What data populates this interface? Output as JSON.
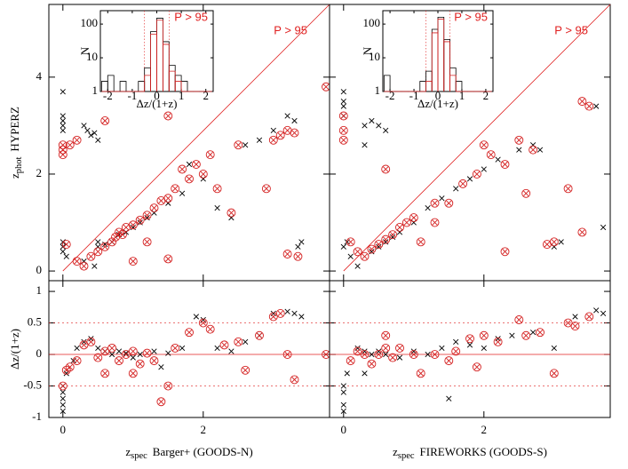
{
  "chart_data": [
    {
      "type": "scatter",
      "xlim": [
        -0.2,
        3.8
      ],
      "ylim": [
        -0.2,
        5.5
      ],
      "xticks": [
        0,
        2
      ],
      "yticks": [
        0,
        2,
        4
      ],
      "annotation": "P > 95",
      "ylabel": {
        "main": "z",
        "sub": "phot",
        "rest": "HYPERZ"
      },
      "series": [
        {
          "color": "#000000",
          "marker": "x",
          "x": [
            0,
            0,
            0,
            0,
            0,
            0,
            0,
            0,
            0.05,
            0.3,
            0.35,
            0.4,
            0.45,
            0.5,
            0.5,
            0.6,
            0.7,
            0.8,
            0.9,
            1.0,
            1.1,
            1.2,
            1.3,
            1.5,
            1.7,
            1.8,
            2.0,
            2.2,
            2.4,
            2.6,
            2.8,
            3.0,
            3.2,
            3.3,
            3.35,
            3.4,
            0.3,
            0.45,
            0.5
          ],
          "y": [
            3.7,
            3.2,
            3.1,
            3.0,
            2.9,
            0.6,
            0.5,
            0.4,
            0.3,
            3.0,
            2.9,
            2.8,
            2.85,
            2.7,
            0.6,
            0.55,
            0.6,
            0.75,
            0.8,
            0.9,
            1.0,
            1.1,
            1.2,
            1.4,
            1.6,
            2.2,
            1.9,
            1.3,
            1.1,
            2.6,
            2.7,
            2.9,
            3.2,
            3.1,
            0.5,
            0.6,
            0.2,
            0.1,
            0.5
          ]
        },
        {
          "color": "#d42020",
          "marker": "circle-x",
          "x": [
            0,
            0,
            0,
            0.1,
            0.2,
            0.05,
            0.2,
            0.3,
            0.4,
            0.5,
            0.6,
            0.7,
            0.75,
            0.8,
            0.85,
            0.9,
            1.0,
            1.1,
            1.2,
            1.3,
            1.4,
            1.0,
            1.2,
            1.5,
            1.6,
            1.7,
            1.8,
            1.9,
            2.0,
            2.1,
            2.2,
            2.4,
            2.5,
            2.9,
            3.0,
            3.1,
            3.2,
            3.3,
            3.35,
            3.2,
            1.5,
            1.5,
            0.6,
            3.75
          ],
          "y": [
            2.6,
            2.5,
            2.4,
            2.6,
            2.7,
            0.55,
            0.2,
            0.1,
            0.3,
            0.4,
            0.5,
            0.6,
            0.7,
            0.8,
            0.75,
            0.9,
            0.95,
            1.05,
            1.15,
            1.3,
            1.45,
            0.2,
            0.6,
            1.5,
            1.7,
            2.1,
            1.9,
            2.2,
            2.0,
            2.4,
            1.7,
            1.2,
            2.6,
            1.7,
            2.7,
            2.8,
            2.9,
            2.85,
            0.3,
            0.35,
            0.25,
            3.2,
            3.1,
            3.8
          ]
        }
      ]
    },
    {
      "type": "scatter",
      "xlim": [
        -0.2,
        3.8
      ],
      "ylim": [
        -1,
        1.17
      ],
      "xticks": [
        0,
        2
      ],
      "yticks": [
        -1,
        -0.5,
        0,
        0.5,
        1
      ],
      "ref_lines": [
        0
      ],
      "dashed_lines": [
        -0.5,
        0.5
      ],
      "ylabel": "Δz/(1+z)",
      "xlabel": {
        "main": "z",
        "sub": "spec",
        "rest": "Barger+ (GOODS-N)"
      },
      "series": [
        {
          "color": "#000000",
          "marker": "x",
          "x": [
            0,
            0,
            0,
            0,
            0,
            0.05,
            0.2,
            0.3,
            0.4,
            0.5,
            0.6,
            0.7,
            0.8,
            0.9,
            1.0,
            1.1,
            1.3,
            1.5,
            1.7,
            1.9,
            2.0,
            2.2,
            2.4,
            2.6,
            2.8,
            3.0,
            3.2,
            3.3,
            3.4,
            1.4,
            0.15
          ],
          "y": [
            -0.7,
            -0.8,
            -0.9,
            -0.6,
            -0.5,
            -0.3,
            0.1,
            0.2,
            0.25,
            0.1,
            0.05,
            0.0,
            0.05,
            0.02,
            -0.05,
            0.0,
            0.05,
            0.02,
            0.1,
            0.6,
            0.55,
            0.1,
            0.05,
            0.2,
            0.3,
            0.65,
            0.68,
            0.65,
            0.6,
            -0.2,
            -0.1
          ]
        },
        {
          "color": "#d42020",
          "marker": "circle-x",
          "x": [
            0,
            0.05,
            0.1,
            0.2,
            0.3,
            0.4,
            0.5,
            0.6,
            0.7,
            0.8,
            0.9,
            1.0,
            1.1,
            1.2,
            1.3,
            1.4,
            1.5,
            1.6,
            1.8,
            2.0,
            2.1,
            2.3,
            2.5,
            2.6,
            2.8,
            3.0,
            3.1,
            3.2,
            3.3,
            3.75,
            1.0,
            0.6
          ],
          "y": [
            -0.5,
            -0.25,
            -0.2,
            -0.1,
            0.15,
            0.2,
            -0.05,
            0.05,
            0.1,
            -0.1,
            0.0,
            0.05,
            -0.15,
            0.02,
            -0.1,
            -0.75,
            -0.5,
            0.1,
            0.35,
            0.5,
            0.4,
            0.15,
            0.2,
            -0.25,
            0.3,
            0.6,
            0.65,
            0.0,
            -0.4,
            0.0,
            -0.3,
            -0.3
          ]
        }
      ]
    },
    {
      "type": "scatter",
      "xlim": [
        -0.2,
        3.8
      ],
      "ylim": [
        -0.2,
        5.5
      ],
      "xticks": [
        0,
        2
      ],
      "yticks": [
        0,
        2,
        4
      ],
      "annotation": "P > 95",
      "series": [
        {
          "color": "#000000",
          "marker": "x",
          "x": [
            0,
            0,
            0,
            0,
            0.05,
            0,
            0.1,
            0.3,
            0.4,
            0.5,
            0.6,
            0.3,
            0.4,
            0.5,
            0.6,
            0.7,
            0.8,
            1.0,
            1.2,
            1.4,
            1.6,
            1.8,
            2.0,
            2.2,
            2.5,
            2.7,
            2.8,
            3.0,
            3.1,
            1.0,
            0.6,
            3.6,
            3.7,
            0.2
          ],
          "y": [
            3.7,
            3.5,
            3.2,
            3.4,
            0.6,
            0.5,
            0.3,
            3.0,
            3.1,
            3.0,
            2.9,
            2.6,
            0.4,
            0.5,
            0.6,
            0.7,
            0.8,
            1.0,
            1.3,
            1.5,
            1.7,
            1.9,
            2.1,
            2.3,
            2.5,
            2.6,
            2.5,
            0.5,
            0.6,
            4.0,
            3.9,
            3.4,
            0.9,
            0.1
          ]
        },
        {
          "color": "#d42020",
          "marker": "circle-x",
          "x": [
            0,
            0,
            0,
            0.1,
            0.2,
            0.3,
            0.4,
            0.5,
            0.6,
            0.7,
            0.8,
            0.9,
            1.0,
            1.1,
            1.3,
            1.5,
            1.7,
            1.9,
            2.0,
            2.1,
            2.3,
            2.5,
            2.6,
            2.7,
            2.9,
            3.0,
            3.2,
            3.4,
            3.5,
            2.3,
            1.3,
            0.6,
            3.4
          ],
          "y": [
            2.9,
            3.2,
            2.7,
            0.6,
            0.4,
            0.3,
            0.45,
            0.55,
            0.65,
            0.75,
            0.9,
            1.0,
            1.1,
            0.6,
            1.4,
            1.4,
            1.8,
            2.0,
            2.6,
            2.4,
            2.2,
            2.7,
            1.6,
            2.5,
            0.55,
            0.6,
            1.7,
            0.8,
            3.4,
            0.4,
            1.0,
            2.1,
            3.5
          ]
        }
      ]
    },
    {
      "type": "scatter",
      "xlim": [
        -0.2,
        3.8
      ],
      "ylim": [
        -1,
        1.17
      ],
      "xticks": [
        0,
        2
      ],
      "yticks": [
        -1,
        -0.5,
        0,
        0.5,
        1
      ],
      "ref_lines": [
        0
      ],
      "dashed_lines": [
        -0.5,
        0.5
      ],
      "xlabel": {
        "main": "z",
        "sub": "spec",
        "rest": "FIREWORKS (GOODS-S)"
      },
      "series": [
        {
          "color": "#000000",
          "marker": "x",
          "x": [
            0,
            0,
            0,
            0,
            0.05,
            0.2,
            0.3,
            0.4,
            0.5,
            0.6,
            0.8,
            1.0,
            1.2,
            1.4,
            1.6,
            1.8,
            2.0,
            2.2,
            2.4,
            2.7,
            3.0,
            3.3,
            3.6,
            1.5,
            0.3,
            3.7
          ],
          "y": [
            -0.6,
            -0.8,
            -0.9,
            -0.5,
            -0.3,
            0.1,
            0.05,
            0.0,
            0.05,
            0.0,
            -0.05,
            0.05,
            0.0,
            0.1,
            0.2,
            0.15,
            0.1,
            0.25,
            0.3,
            0.35,
            0.1,
            0.6,
            0.7,
            -0.7,
            -0.3,
            0.65
          ]
        },
        {
          "color": "#d42020",
          "marker": "circle-x",
          "x": [
            0.1,
            0.2,
            0.3,
            0.4,
            0.5,
            0.6,
            0.7,
            0.8,
            1.0,
            1.1,
            1.3,
            1.5,
            1.6,
            1.8,
            2.0,
            2.2,
            2.5,
            2.6,
            2.8,
            3.0,
            3.2,
            3.3,
            3.5,
            1.9,
            0.6
          ],
          "y": [
            -0.1,
            0.05,
            0.0,
            -0.15,
            0.0,
            0.1,
            -0.05,
            0.1,
            0.0,
            -0.3,
            0.0,
            -0.1,
            0.05,
            0.25,
            0.3,
            0.2,
            0.55,
            0.3,
            0.35,
            -0.3,
            0.5,
            0.45,
            0.6,
            -0.2,
            0.3
          ]
        }
      ]
    },
    {
      "type": "histogram",
      "log": true,
      "xlim": [
        -2.3,
        2.3
      ],
      "ylim": [
        1,
        250
      ],
      "xticks": [
        -2,
        -1,
        0,
        1,
        2
      ],
      "yticks": [
        1,
        10,
        100
      ],
      "annotation": "P > 95",
      "ylabel": "N",
      "xlabel": "Δz/(1+z)",
      "vlines": [
        -0.5,
        0.5
      ],
      "bins": [
        -2.25,
        -2,
        -1.75,
        -1.5,
        -1.25,
        -1,
        -0.75,
        -0.5,
        -0.25,
        0,
        0.25,
        0.5,
        0.75,
        1,
        1.25,
        1.5,
        1.75,
        2,
        2.25
      ],
      "series": [
        {
          "color": "#000000",
          "counts": [
            2,
            3,
            1,
            2,
            1,
            1,
            2,
            5,
            60,
            150,
            30,
            6,
            3,
            2,
            1,
            1,
            1,
            1
          ]
        },
        {
          "color": "#d42020",
          "counts": [
            1,
            1,
            1,
            1,
            1,
            1,
            1,
            3,
            50,
            130,
            25,
            4,
            2,
            1,
            1,
            1,
            1,
            1
          ]
        }
      ]
    },
    {
      "type": "histogram",
      "log": true,
      "xlim": [
        -2.3,
        2.3
      ],
      "ylim": [
        1,
        250
      ],
      "xticks": [
        -2,
        -1,
        0,
        1,
        2
      ],
      "yticks": [
        1,
        10,
        100
      ],
      "annotation": "P > 95",
      "ylabel": "N",
      "xlabel": "Δz/(1+z)",
      "vlines": [
        -0.5,
        0.5
      ],
      "bins": [
        -2.25,
        -2,
        -1.75,
        -1.5,
        -1.25,
        -1,
        -0.75,
        -0.5,
        -0.25,
        0,
        0.25,
        0.5,
        0.75,
        1,
        1.25,
        1.5,
        1.75,
        2,
        2.25
      ],
      "series": [
        {
          "color": "#000000",
          "counts": [
            3,
            1,
            1,
            1,
            1,
            1,
            2,
            4,
            70,
            160,
            35,
            5,
            2,
            1,
            1,
            1,
            1,
            1
          ]
        },
        {
          "color": "#d42020",
          "counts": [
            1,
            1,
            1,
            1,
            1,
            1,
            1,
            2,
            55,
            140,
            30,
            3,
            1,
            1,
            1,
            1,
            1,
            1
          ]
        }
      ]
    }
  ]
}
